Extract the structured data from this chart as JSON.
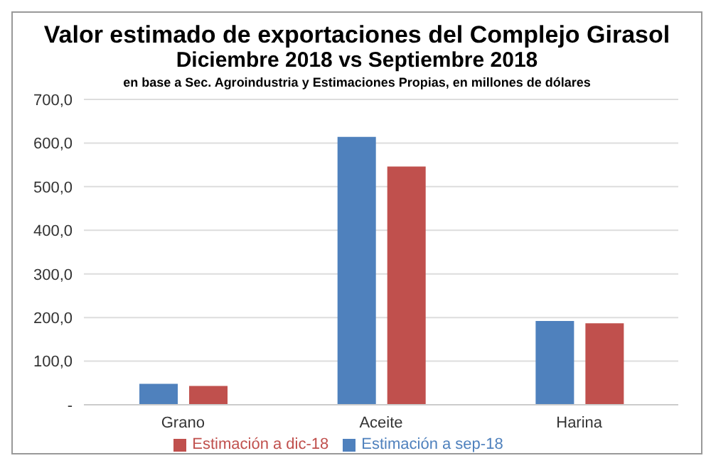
{
  "chart_data": {
    "type": "bar",
    "title": "Valor estimado de exportaciones del Complejo Girasol",
    "subtitle": "Diciembre 2018 vs Septiembre 2018",
    "annotations": [
      "en base a Sec. Agroindustria y Estimaciones Propias, en millones de dólares"
    ],
    "categories": [
      "Grano",
      "Aceite",
      "Harina"
    ],
    "series": [
      {
        "name": "Estimación a sep-18",
        "color": "#4f81bd",
        "values": [
          48,
          614,
          192
        ]
      },
      {
        "name": "Estimación a dic-18",
        "color": "#c0504d",
        "values": [
          43,
          546,
          187
        ]
      }
    ],
    "ylim": [
      0,
      700
    ],
    "yticks": [
      {
        "value": 0,
        "label": "-"
      },
      {
        "value": 100,
        "label": "100,0"
      },
      {
        "value": 200,
        "label": "200,0"
      },
      {
        "value": 300,
        "label": "300,0"
      },
      {
        "value": 400,
        "label": "400,0"
      },
      {
        "value": 500,
        "label": "500,0"
      },
      {
        "value": 600,
        "label": "600,0"
      },
      {
        "value": 700,
        "label": "700,0"
      }
    ],
    "grid": "y",
    "legend": "bottom"
  }
}
